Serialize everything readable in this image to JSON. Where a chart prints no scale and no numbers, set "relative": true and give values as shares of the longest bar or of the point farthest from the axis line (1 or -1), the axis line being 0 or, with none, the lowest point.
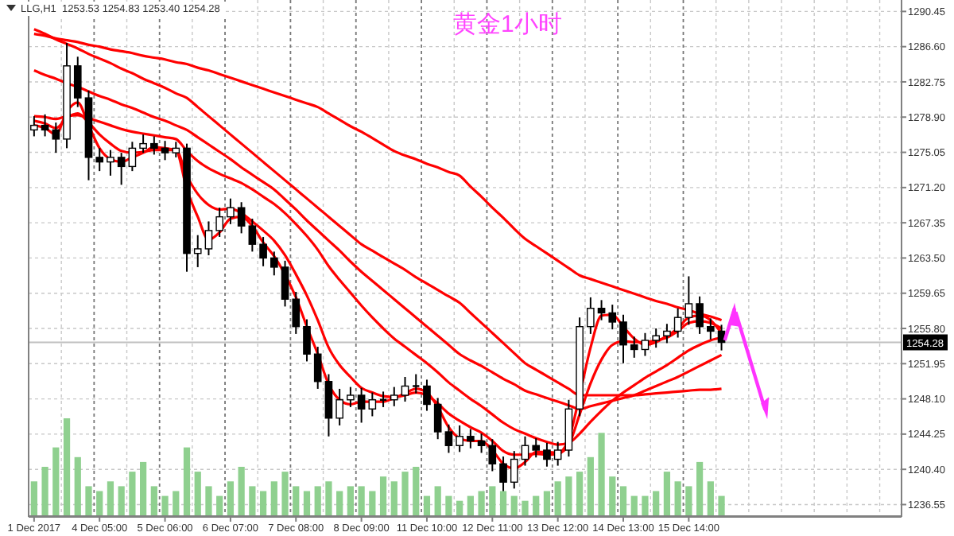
{
  "chart_data": [
    {
      "type": "candlestick",
      "title": "黄金1小时",
      "subtitle": "LLG,H1  1253.53 1254.83 1253.40 1254.28",
      "color": "#000000",
      "grid": true,
      "categories": [
        "1 Dec 2017",
        null,
        null,
        null,
        null,
        null,
        "4 Dec 05:00",
        null,
        null,
        null,
        null,
        null,
        "5 Dec 06:00",
        null,
        null,
        null,
        null,
        null,
        "6 Dec 07:00",
        null,
        null,
        null,
        null,
        null,
        "7 Dec 08:00",
        null,
        null,
        null,
        null,
        null,
        "8 Dec 09:00",
        null,
        null,
        null,
        null,
        null,
        "11 Dec 10:00",
        null,
        null,
        null,
        null,
        null,
        "12 Dec 11:00",
        null,
        null,
        null,
        null,
        null,
        "13 Dec 12:00",
        null,
        null,
        null,
        null,
        null,
        "14 Dec 13:00",
        null,
        null,
        null,
        null,
        null,
        "15 Dec 14:00",
        null,
        null,
        null,
        null,
        null,
        null,
        null,
        null,
        null,
        null,
        null,
        null,
        null,
        null,
        null,
        null,
        null,
        null,
        null
      ],
      "ohlc": [
        [
          1277.5,
          1279,
          1276.8,
          1278
        ],
        [
          1278,
          1279.2,
          1276.8,
          1277.5
        ],
        [
          1277.5,
          1278.3,
          1275,
          1276.5
        ],
        [
          1276.5,
          1287,
          1275.5,
          1284.5
        ],
        [
          1284.5,
          1285.5,
          1280,
          1281
        ],
        [
          1281,
          1281.8,
          1272,
          1274.5
        ],
        [
          1274.5,
          1275.5,
          1273,
          1274
        ],
        [
          1274,
          1275.3,
          1272.5,
          1274.5
        ],
        [
          1274.5,
          1275,
          1271.5,
          1273.5
        ],
        [
          1273.5,
          1276.2,
          1273,
          1275.5
        ],
        [
          1275.5,
          1277,
          1275,
          1276
        ],
        [
          1276,
          1276.8,
          1274.8,
          1275.5
        ],
        [
          1275.5,
          1276.3,
          1274.2,
          1275
        ],
        [
          1275,
          1276.2,
          1274.5,
          1275.5
        ],
        [
          1275.5,
          1276,
          1262,
          1264
        ],
        [
          1264,
          1266,
          1262.5,
          1264.5
        ],
        [
          1264.5,
          1267.5,
          1263.8,
          1266.5
        ],
        [
          1266.5,
          1269,
          1265.8,
          1268
        ],
        [
          1268,
          1270,
          1267.2,
          1269
        ],
        [
          1269,
          1269.6,
          1266.2,
          1267
        ],
        [
          1267,
          1267.8,
          1264.2,
          1265
        ],
        [
          1265,
          1265.8,
          1262.6,
          1263.5
        ],
        [
          1263.5,
          1264.2,
          1261.6,
          1262.5
        ],
        [
          1262.5,
          1263.2,
          1258.2,
          1259
        ],
        [
          1259,
          1259.8,
          1255.2,
          1256
        ],
        [
          1256,
          1256.8,
          1252.2,
          1253
        ],
        [
          1253,
          1253.8,
          1249.2,
          1250
        ],
        [
          1250,
          1250.8,
          1244,
          1246
        ],
        [
          1246,
          1249.2,
          1245.2,
          1248
        ],
        [
          1248,
          1249.4,
          1247.2,
          1248.5
        ],
        [
          1248.5,
          1249.3,
          1245.5,
          1247
        ],
        [
          1247,
          1248.8,
          1246.2,
          1248
        ],
        [
          1248,
          1248.9,
          1247.2,
          1248
        ],
        [
          1248,
          1249.4,
          1247.3,
          1248.5
        ],
        [
          1248.5,
          1250.5,
          1247.8,
          1249.5
        ],
        [
          1249.5,
          1250.8,
          1248.7,
          1249.5
        ],
        [
          1249.5,
          1250.2,
          1246.8,
          1247.5
        ],
        [
          1247.5,
          1248.2,
          1243.7,
          1244.5
        ],
        [
          1244.5,
          1245.3,
          1242.2,
          1243
        ],
        [
          1243,
          1245.2,
          1242.3,
          1244
        ],
        [
          1244,
          1244.8,
          1242.7,
          1243.5
        ],
        [
          1243.5,
          1244.3,
          1242.2,
          1243
        ],
        [
          1243,
          1243.7,
          1240.2,
          1241
        ],
        [
          1241,
          1241.8,
          1237.5,
          1239
        ],
        [
          1239,
          1242.4,
          1238.3,
          1241.5
        ],
        [
          1241.5,
          1244,
          1240.8,
          1243
        ],
        [
          1243,
          1243.8,
          1241.7,
          1242.5
        ],
        [
          1242.5,
          1243.3,
          1240.7,
          1241.5
        ],
        [
          1241.5,
          1243.4,
          1240.8,
          1242.5
        ],
        [
          1242.5,
          1248,
          1241.8,
          1247
        ],
        [
          1247,
          1257,
          1246.2,
          1256
        ],
        [
          1256,
          1259.2,
          1255.2,
          1258
        ],
        [
          1258,
          1258.9,
          1256.7,
          1257.5
        ],
        [
          1257.5,
          1258.4,
          1255.7,
          1256.5
        ],
        [
          1256.5,
          1257.3,
          1252,
          1254
        ],
        [
          1254,
          1254.9,
          1252.6,
          1253.5
        ],
        [
          1253.5,
          1255.3,
          1252.8,
          1254.5
        ],
        [
          1254.5,
          1255.8,
          1253.7,
          1255
        ],
        [
          1255,
          1256.3,
          1254.2,
          1255.5
        ],
        [
          1255.5,
          1258,
          1254.8,
          1257
        ],
        [
          1257,
          1261.5,
          1256.2,
          1258.5
        ],
        [
          1258.5,
          1259.3,
          1255.2,
          1256
        ],
        [
          1256,
          1256.9,
          1254.6,
          1255.5
        ],
        [
          1255.5,
          1256.2,
          1253.4,
          1254.28
        ],
        null,
        null,
        null,
        null,
        null,
        null,
        null,
        null,
        null,
        null,
        null,
        null,
        null,
        null,
        null,
        null
      ],
      "series": [
        {
          "type": "line",
          "color": "#ff0000",
          "values": [
            1288,
            1287.8,
            1287.5,
            1287.3,
            1287.1,
            1286.8,
            1286.6,
            1286.3,
            1286.1,
            1285.9,
            1285.6,
            1285.4,
            1285.2,
            1284.9,
            1284.7,
            1284.3,
            1284,
            1283.6,
            1283.2,
            1282.8,
            1282.4,
            1282,
            1281.6,
            1281.2,
            1280.8,
            1280.4,
            1280,
            1279.3,
            1278.6,
            1277.9,
            1277.3,
            1276.6,
            1275.9,
            1275.2,
            1274.7,
            1274.3,
            1273.8,
            1273.4,
            1272.9,
            1272.5,
            1271.3,
            1270.2,
            1269,
            1267.9,
            1266.7,
            1265.6,
            1264.8,
            1264,
            1263.2,
            1262.4,
            1261.6,
            1261.2,
            1260.8,
            1260.4,
            1260,
            1259.6,
            1259.2,
            1258.8,
            1258.5,
            1258.1,
            1257.8,
            1257.4,
            1257.1,
            1256.7,
            null,
            null,
            null,
            null,
            null,
            null,
            null,
            null,
            null,
            null,
            null,
            null,
            null,
            null,
            null,
            null
          ]
        },
        {
          "type": "line",
          "color": "#ff0000",
          "values": [
            1288.5,
            1288,
            1287.4,
            1286.9,
            1286.4,
            1285.8,
            1285.3,
            1284.8,
            1284.2,
            1283.7,
            1283.1,
            1282.6,
            1282.1,
            1281.5,
            1281,
            1280,
            1279,
            1278,
            1277,
            1276,
            1275,
            1274,
            1273,
            1272,
            1271,
            1270,
            1269,
            1268,
            1267,
            1266,
            1265,
            1264.3,
            1263.6,
            1262.9,
            1262.2,
            1261.4,
            1260.7,
            1260,
            1259.3,
            1258.6,
            1257.5,
            1256.4,
            1255.3,
            1254.2,
            1253.1,
            1252,
            1251.3,
            1250.6,
            1249.9,
            1249.2,
            1248.5,
            1248.5,
            1248.5,
            1248.5,
            1248.5,
            1248.5,
            1248.6,
            1248.7,
            1248.8,
            1248.9,
            1249,
            1249.1,
            1249.1,
            1249.2,
            null,
            null,
            null,
            null,
            null,
            null,
            null,
            null,
            null,
            null,
            null,
            null,
            null,
            null,
            null,
            null
          ]
        },
        {
          "type": "line",
          "color": "#ff0000",
          "values": [
            1284,
            1283.5,
            1283.1,
            1282.6,
            1282.2,
            1281.7,
            1281.2,
            1280.8,
            1280.3,
            1279.9,
            1279.4,
            1278.9,
            1278.5,
            1278,
            1277.5,
            1276.7,
            1275.9,
            1275.1,
            1274.3,
            1273.4,
            1272.6,
            1271.8,
            1271,
            1269.9,
            1268.8,
            1267.6,
            1266.5,
            1265.4,
            1264.3,
            1263.1,
            1262,
            1261,
            1260,
            1259,
            1258,
            1257,
            1256,
            1255,
            1254,
            1253,
            1252.3,
            1251.7,
            1251,
            1250.3,
            1249.7,
            1249,
            1248.6,
            1248.2,
            1247.8,
            1247.4,
            1247,
            1247.3,
            1247.6,
            1247.9,
            1248.2,
            1248.5,
            1249,
            1249.5,
            1250,
            1250.5,
            1251.1,
            1251.7,
            1252.3,
            1252.9,
            null,
            null,
            null,
            null,
            null,
            null,
            null,
            null,
            null,
            null,
            null,
            null,
            null,
            null,
            null,
            null
          ]
        },
        {
          "type": "line",
          "color": "#ff0000",
          "values": [
            1279,
            1278.9,
            1278.7,
            1279,
            1279.1,
            1278.8,
            1278.4,
            1278,
            1277.6,
            1277.3,
            1277.1,
            1276.9,
            1276.7,
            1276.5,
            1275.2,
            1274.1,
            1273.3,
            1272.7,
            1272.2,
            1271.7,
            1271,
            1270.2,
            1269.4,
            1268.4,
            1267.2,
            1265.9,
            1264.4,
            1262.6,
            1261.1,
            1259.7,
            1258.3,
            1257,
            1255.8,
            1254.7,
            1253.8,
            1252.9,
            1252,
            1251,
            1249.9,
            1249,
            1248.1,
            1247.3,
            1246.4,
            1245.5,
            1244.8,
            1244.3,
            1243.8,
            1243.4,
            1243.1,
            1243.3,
            1244.3,
            1245.6,
            1246.8,
            1247.9,
            1248.8,
            1249.6,
            1250.4,
            1251.1,
            1251.8,
            1252.6,
            1253.4,
            1254,
            1254.5,
            1254.8,
            null,
            null,
            null,
            null,
            null,
            null,
            null,
            null,
            null,
            null,
            null,
            null,
            null,
            null,
            null,
            null
          ]
        },
        {
          "type": "line",
          "color": "#ff0000",
          "values": [
            1278.5,
            1278.2,
            1277.7,
            1278.8,
            1279.3,
            1278.3,
            1277,
            1276,
            1275.2,
            1275,
            1275.1,
            1275.3,
            1275.3,
            1275.3,
            1272.5,
            1270.5,
            1269.3,
            1268.8,
            1268.9,
            1268.4,
            1267.5,
            1266.5,
            1265.4,
            1263.8,
            1261.7,
            1259.4,
            1256.7,
            1253.7,
            1251.8,
            1250.5,
            1249.3,
            1248.8,
            1248.4,
            1248.3,
            1248.5,
            1248.8,
            1248.5,
            1247.6,
            1246.5,
            1245.7,
            1245,
            1244.4,
            1243.5,
            1242.4,
            1242,
            1242,
            1242.1,
            1242,
            1242.1,
            1243.1,
            1246.4,
            1249.8,
            1252.4,
            1254,
            1254.4,
            1254.3,
            1254.3,
            1254.5,
            1254.8,
            1255.5,
            1256.4,
            1256.6,
            1256.4,
            1255.8,
            null,
            null,
            null,
            null,
            null,
            null,
            null,
            null,
            null,
            null,
            null,
            null,
            null,
            null,
            null,
            null
          ]
        },
        {
          "type": "line",
          "color": "#ff0000",
          "values": [
            1278,
            1277.7,
            1277,
            1279.5,
            1280.5,
            1278,
            1275.5,
            1274.3,
            1274,
            1274.5,
            1275,
            1275.6,
            1275.5,
            1275.3,
            1271,
            1268,
            1265.5,
            1266.3,
            1267.8,
            1268,
            1267,
            1265.2,
            1263.7,
            1261.7,
            1259.2,
            1256,
            1253,
            1249.7,
            1248,
            1247.5,
            1247.8,
            1247.8,
            1247.8,
            1248.2,
            1248.7,
            1249.2,
            1248.8,
            1247.2,
            1245,
            1243.8,
            1243.5,
            1243.5,
            1242.5,
            1241,
            1240.5,
            1241.2,
            1242.3,
            1242.3,
            1242.2,
            1243.7,
            1248.5,
            1253.7,
            1257.2,
            1257.3,
            1256,
            1254.7,
            1254,
            1254.3,
            1255,
            1255.8,
            1257,
            1257.2,
            1256.7,
            1255.3,
            null,
            null,
            null,
            null,
            null,
            null,
            null,
            null,
            null,
            null,
            null,
            null,
            null,
            null,
            null,
            null
          ]
        }
      ],
      "ylim": [
        1235.2,
        1291.7
      ],
      "yticks": [
        1236.55,
        {
          "value": 1240.4,
          "label": "1240.40"
        },
        1244.25,
        {
          "value": 1248.1,
          "label": "1248.10"
        },
        1251.95,
        {
          "value": 1255.8,
          "label": "1255.80"
        },
        1259.65,
        {
          "value": 1263.5,
          "label": "1263.50"
        },
        1267.35,
        {
          "value": 1271.2,
          "label": "1271.20"
        },
        1275.05,
        {
          "value": 1278.9,
          "label": "1278.90"
        },
        1282.75,
        {
          "value": 1286.6,
          "label": "1286.60"
        },
        1290.45
      ],
      "ref_lines": [
        {
          "axis": "y",
          "value": 1254.28,
          "label": "1254.28",
          "color": "#c0c0c0"
        }
      ]
    },
    {
      "type": "bar",
      "relative": true,
      "color": "#8fd08f",
      "categories": [
        null,
        null,
        null,
        null,
        null,
        null,
        null,
        null,
        null,
        null,
        null,
        null,
        null,
        null,
        null,
        null,
        null,
        null,
        null,
        null,
        null,
        null,
        null,
        null,
        null,
        null,
        null,
        null,
        null,
        null,
        null,
        null,
        null,
        null,
        null,
        null,
        null,
        null,
        null,
        null,
        null,
        null,
        null,
        null,
        null,
        null,
        null,
        null,
        null,
        null,
        null,
        null,
        null,
        null,
        null,
        null,
        null,
        null,
        null,
        null,
        null,
        null,
        null,
        null,
        null,
        null,
        null,
        null,
        null,
        null,
        null,
        null,
        null,
        null,
        null,
        null,
        null,
        null,
        null,
        null
      ],
      "values": [
        0.35,
        0.5,
        0.7,
        1.0,
        0.6,
        0.3,
        0.25,
        0.35,
        0.3,
        0.45,
        0.55,
        0.3,
        0.2,
        0.25,
        0.7,
        0.45,
        0.3,
        0.2,
        0.35,
        0.5,
        0.3,
        0.25,
        0.35,
        0.45,
        0.3,
        0.25,
        0.3,
        0.35,
        0.25,
        0.3,
        0.3,
        0.25,
        0.4,
        0.35,
        0.45,
        0.5,
        0.2,
        0.3,
        0.2,
        0.15,
        0.2,
        0.25,
        0.3,
        0.25,
        0.2,
        0.15,
        0.2,
        0.25,
        0.35,
        0.4,
        0.45,
        0.6,
        0.85,
        0.4,
        0.3,
        0.2,
        0.2,
        0.25,
        0.45,
        0.35,
        0.3,
        0.55,
        0.35,
        0.2,
        null,
        null,
        null,
        null,
        null,
        null,
        null,
        null,
        null,
        null,
        null,
        null,
        null,
        null,
        null,
        null
      ]
    }
  ]
}
